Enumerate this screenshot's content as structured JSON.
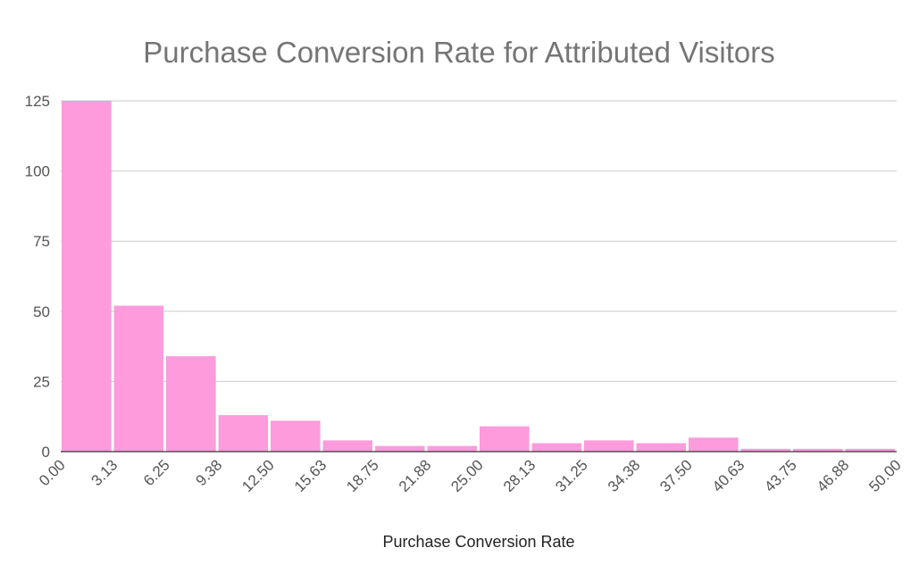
{
  "chart_data": {
    "type": "bar",
    "title": "Purchase Conversion Rate for Attributed Visitors",
    "xlabel": "Purchase Conversion Rate",
    "ylabel": "",
    "bin_edges": [
      "0.00",
      "3.13",
      "6.25",
      "9.38",
      "12.50",
      "15.63",
      "18.75",
      "21.88",
      "25.00",
      "28.13",
      "31.25",
      "34.38",
      "37.50",
      "40.63",
      "43.75",
      "46.88",
      "50.00"
    ],
    "values": [
      125,
      52,
      34,
      13,
      11,
      4,
      2,
      2,
      9,
      3,
      4,
      3,
      5,
      1,
      1,
      1
    ],
    "yticks": [
      0,
      25,
      50,
      75,
      100,
      125
    ],
    "ylim": [
      0,
      125
    ],
    "xlim": [
      0,
      50
    ],
    "grid": true,
    "bar_color": "#fd9bdc"
  }
}
